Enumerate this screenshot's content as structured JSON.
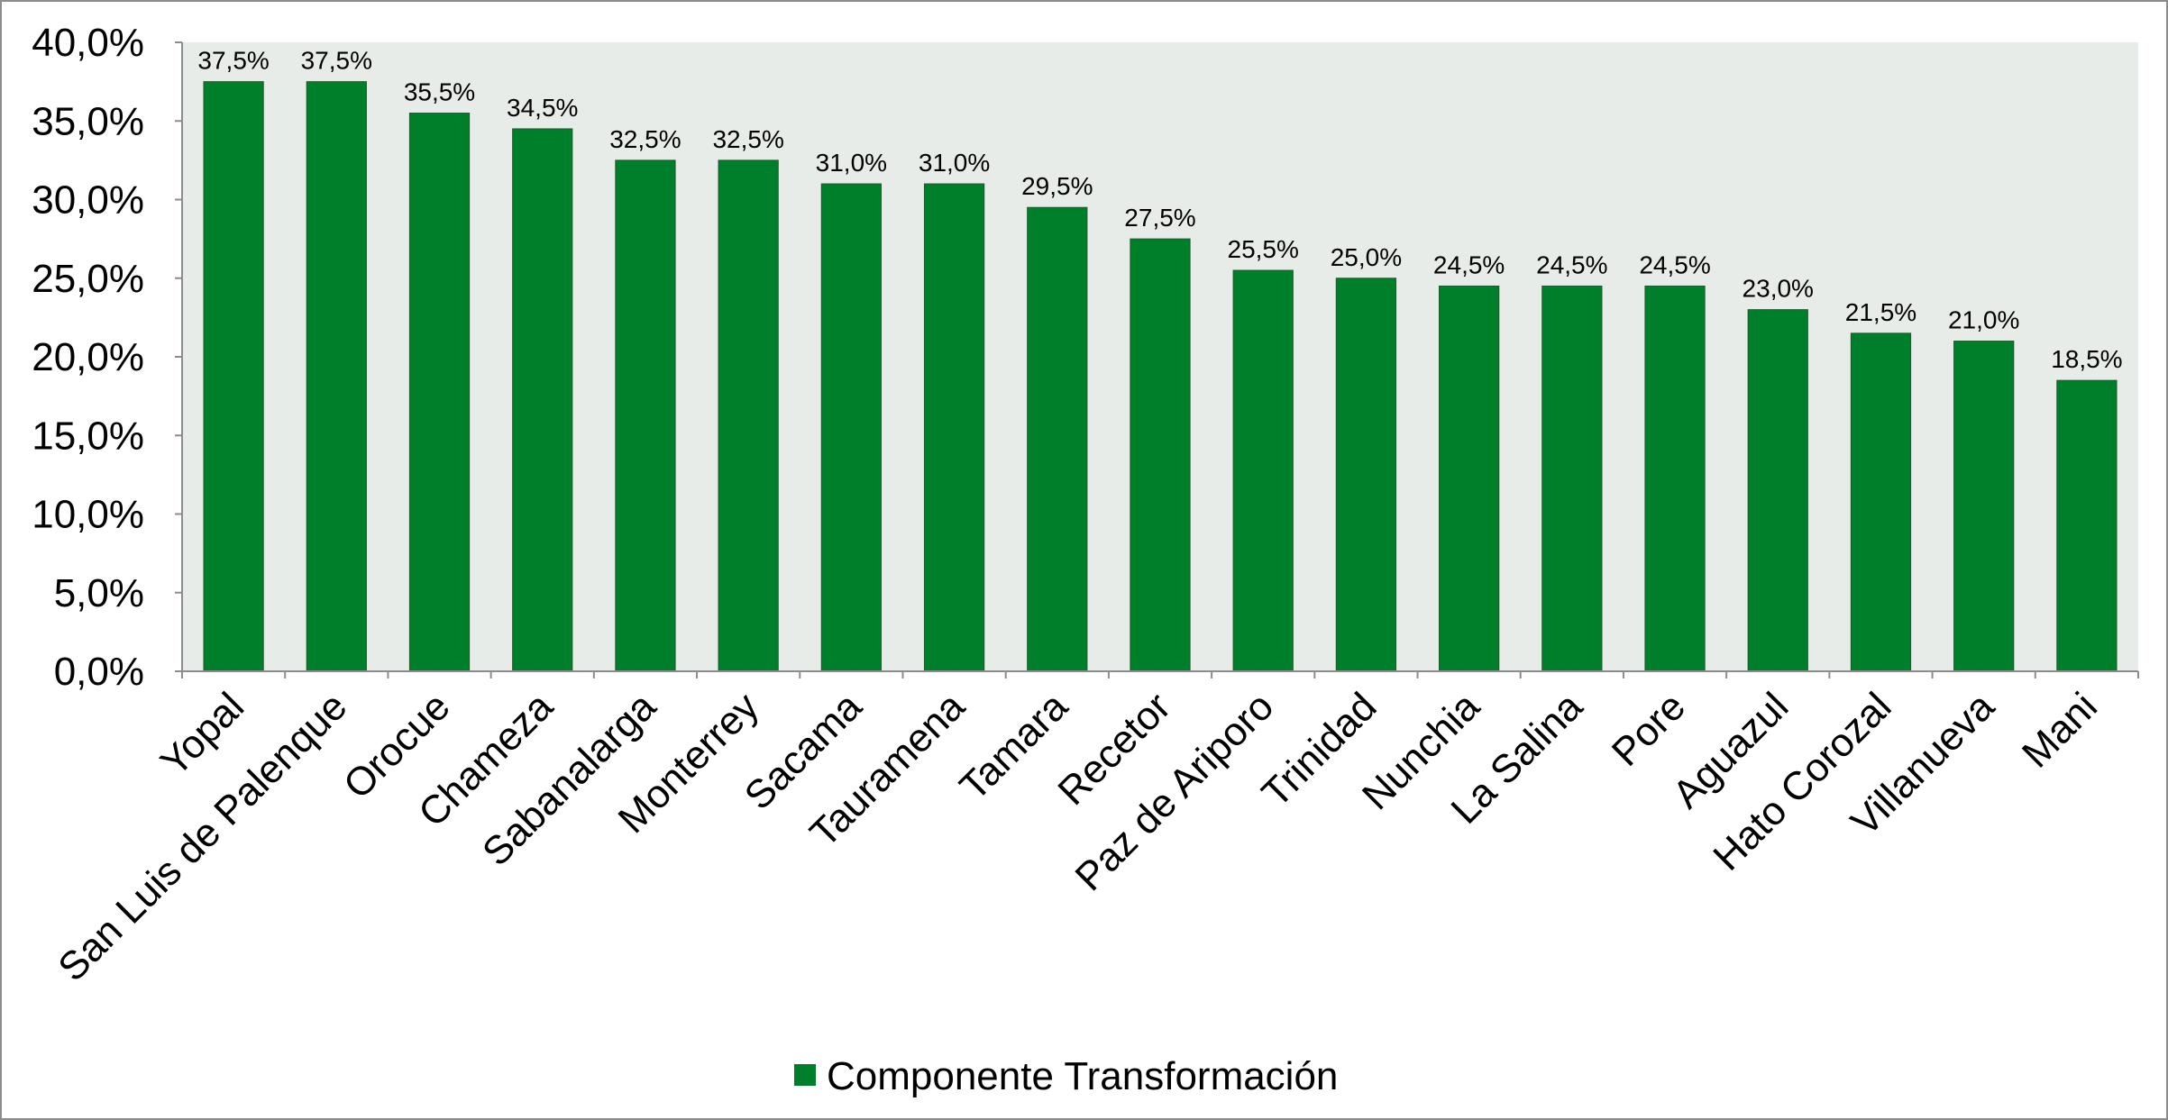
{
  "chart_data": {
    "type": "bar",
    "title": "",
    "xlabel": "",
    "ylabel": "",
    "categories": [
      "Yopal",
      "San Luis de Palenque",
      "Orocue",
      "Chameza",
      "Sabanalarga",
      "Monterrey",
      "Sacama",
      "Tauramena",
      "Tamara",
      "Recetor",
      "Paz de Ariporo",
      "Trinidad",
      "Nunchia",
      "La Salina",
      "Pore",
      "Aguazul",
      "Hato Corozal",
      "Villanueva",
      "Mani"
    ],
    "series": [
      {
        "name": "Componente Transformación",
        "values": [
          37.5,
          37.5,
          35.5,
          34.5,
          32.5,
          32.5,
          31.0,
          31.0,
          29.5,
          27.5,
          25.5,
          25.0,
          24.5,
          24.5,
          24.5,
          23.0,
          21.5,
          21.0,
          18.5
        ],
        "data_labels": [
          "37,5%",
          "37,5%",
          "35,5%",
          "34,5%",
          "32,5%",
          "32,5%",
          "31,0%",
          "31,0%",
          "29,5%",
          "27,5%",
          "25,5%",
          "25,0%",
          "24,5%",
          "24,5%",
          "24,5%",
          "23,0%",
          "21,5%",
          "21,0%",
          "18,5%"
        ],
        "color": "#007f2a"
      }
    ],
    "ylim": [
      0,
      40
    ],
    "yticks": [
      0,
      5,
      10,
      15,
      20,
      25,
      30,
      35,
      40
    ],
    "ytick_labels": [
      "0,0%",
      "5,0%",
      "10,0%",
      "15,0%",
      "20,0%",
      "25,0%",
      "30,0%",
      "35,0%",
      "40,0%"
    ],
    "plot_background": "#e8ece8",
    "grid": false,
    "legend": {
      "position": "bottom",
      "label": "Componente Transformación"
    }
  }
}
